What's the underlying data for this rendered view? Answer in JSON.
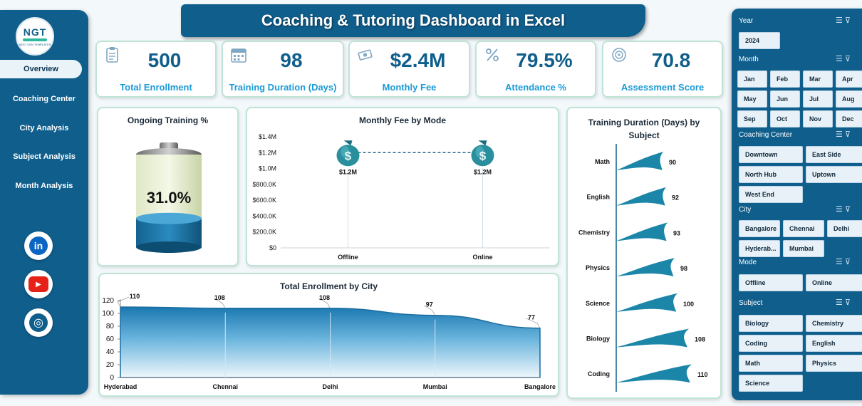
{
  "title": "Coaching & Tutoring Dashboard in Excel",
  "logo": {
    "text": "NGT",
    "subtext": "NEXT GEN TEMPLATES"
  },
  "nav": [
    {
      "label": "Overview",
      "active": true
    },
    {
      "label": "Coaching Center"
    },
    {
      "label": "City Analysis"
    },
    {
      "label": "Subject Analysis"
    },
    {
      "label": "Month Analysis"
    }
  ],
  "social": [
    {
      "icon": "linkedin-icon",
      "glyph": "in",
      "color": "#0a66c2"
    },
    {
      "icon": "youtube-icon",
      "glyph": "▶",
      "color": "#e62117"
    },
    {
      "icon": "globe-icon",
      "glyph": "◎",
      "color": "#0f5e8c"
    }
  ],
  "kpis": [
    {
      "value": "500",
      "label": "Total Enrollment",
      "icon": "clipboard-icon"
    },
    {
      "value": "98",
      "label": "Training Duration (Days)",
      "icon": "calendar-icon"
    },
    {
      "value": "$2.4M",
      "label": "Monthly Fee",
      "icon": "money-icon"
    },
    {
      "value": "79.5%",
      "label": "Attendance %",
      "icon": "percent-icon"
    },
    {
      "value": "70.8",
      "label": "Assessment Score",
      "icon": "score-icon"
    }
  ],
  "ongoing": {
    "title": "Ongoing Training %",
    "value": "31.0%",
    "fraction": 0.31
  },
  "chart_data": [
    {
      "type": "line",
      "title": "Monthly Fee by Mode",
      "categories": [
        "Offline",
        "Online"
      ],
      "values": [
        1200000,
        1200000
      ],
      "data_labels": [
        "$1.2M",
        "$1.2M"
      ],
      "y_ticks": [
        "$0",
        "$200.0K",
        "$400.0K",
        "$600.0K",
        "$800.0K",
        "$1.0M",
        "$1.2M",
        "$1.4M"
      ],
      "ylim": [
        0,
        1400000
      ]
    },
    {
      "type": "bar",
      "title": "Training Duration (Days) by Subject",
      "categories": [
        "Math",
        "English",
        "Chemistry",
        "Physics",
        "Science",
        "Biology",
        "Coding"
      ],
      "values": [
        90,
        92,
        93,
        98,
        100,
        108,
        110
      ]
    },
    {
      "type": "area",
      "title": "Total Enrollment by City",
      "categories": [
        "Hyderabad",
        "Chennai",
        "Delhi",
        "Mumbai",
        "Bangalore"
      ],
      "values": [
        110,
        108,
        108,
        97,
        77
      ],
      "y_ticks": [
        "0",
        "20",
        "40",
        "60",
        "80",
        "100",
        "120"
      ],
      "ylim": [
        0,
        120
      ]
    }
  ],
  "slicers": {
    "year": {
      "label": "Year",
      "items": [
        "2024"
      ]
    },
    "month": {
      "label": "Month",
      "items": [
        "Jan",
        "Feb",
        "Mar",
        "Apr",
        "May",
        "Jun",
        "Jul",
        "Aug",
        "Sep",
        "Oct",
        "Nov",
        "Dec"
      ]
    },
    "center": {
      "label": "Coaching Center",
      "items": [
        "Downtown",
        "East Side",
        "North Hub",
        "Uptown",
        "West End"
      ]
    },
    "city": {
      "label": "City",
      "items": [
        "Bangalore",
        "Chennai",
        "Delhi",
        "Hyderab...",
        "Mumbai"
      ]
    },
    "mode": {
      "label": "Mode",
      "items": [
        "Offline",
        "Online"
      ]
    },
    "subject": {
      "label": "Subject",
      "items": [
        "Biology",
        "Chemistry",
        "Coding",
        "English",
        "Math",
        "Physics",
        "Science"
      ]
    }
  }
}
